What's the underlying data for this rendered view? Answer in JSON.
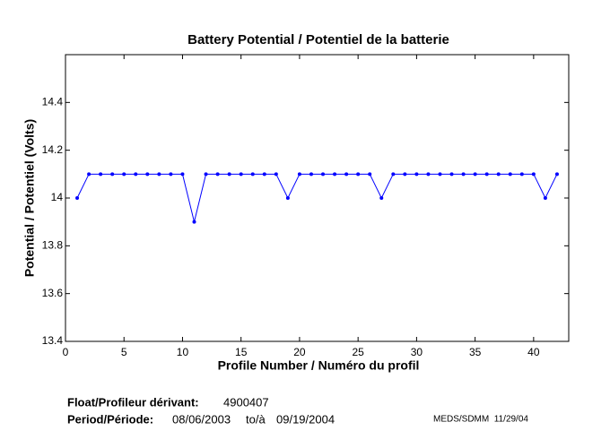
{
  "chart_data": {
    "type": "line",
    "title": "Battery Potential / Potentiel de la batterie",
    "xlabel": "Profile Number / Numéro du profil",
    "ylabel": "Potential / Potentiel (Volts)",
    "x": [
      1,
      2,
      3,
      4,
      5,
      6,
      7,
      8,
      9,
      10,
      11,
      12,
      13,
      14,
      15,
      16,
      17,
      18,
      19,
      20,
      21,
      22,
      23,
      24,
      25,
      26,
      27,
      28,
      29,
      30,
      31,
      32,
      33,
      34,
      35,
      36,
      37,
      38,
      39,
      40,
      41,
      42
    ],
    "values": [
      14,
      14.1,
      14.1,
      14.1,
      14.1,
      14.1,
      14.1,
      14.1,
      14.1,
      14.1,
      13.9,
      14.1,
      14.1,
      14.1,
      14.1,
      14.1,
      14.1,
      14.1,
      14,
      14.1,
      14.1,
      14.1,
      14.1,
      14.1,
      14.1,
      14.1,
      14,
      14.1,
      14.1,
      14.1,
      14.1,
      14.1,
      14.1,
      14.1,
      14.1,
      14.1,
      14.1,
      14.1,
      14.1,
      14.1,
      14,
      14.1
    ],
    "color": "#0000ff",
    "xlim": [
      0,
      43
    ],
    "xticks": [
      0,
      5,
      10,
      15,
      20,
      25,
      30,
      35,
      40
    ],
    "ylim": [
      13.4,
      14.6
    ],
    "yticks": [
      13.4,
      13.6,
      13.8,
      14,
      14.2,
      14.4
    ],
    "float_label": "Float/Profileur dérivant:",
    "float_id": "4900407",
    "period_label": "Period/Période:",
    "period_start": "08/06/2003",
    "period_to": "to/à",
    "period_end": "09/19/2004",
    "credit": "MEDS/SDMM  11/29/04"
  }
}
